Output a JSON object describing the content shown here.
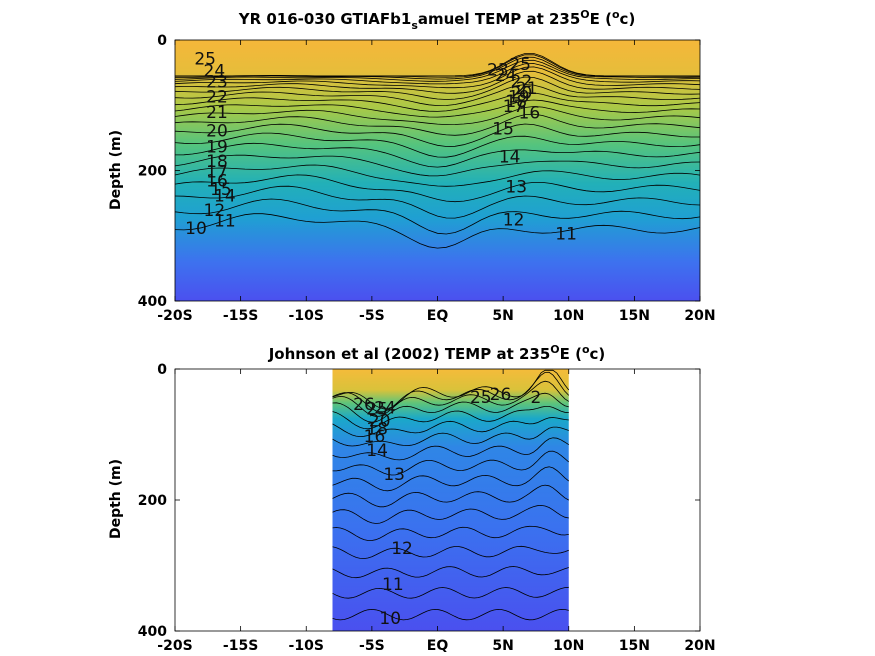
{
  "chart_data": [
    {
      "type": "heatmap",
      "title": "YR 016-030 GTIAFb1",
      "title_subscript": "s",
      "title_rest": "amuel TEMP at 235",
      "title_sup1": "O",
      "title_mid": "E (",
      "title_sup2": "o",
      "title_end": "c)",
      "xlabel": "",
      "ylabel": "Depth (m)",
      "x_tick_labels": [
        "-20S",
        "-15S",
        "-10S",
        "-5S",
        "EQ",
        "5N",
        "10N",
        "15N",
        "20N"
      ],
      "x_ticks": [
        -20,
        -15,
        -10,
        -5,
        0,
        5,
        10,
        15,
        20
      ],
      "y_tick_labels": [
        "0",
        "200",
        "400"
      ],
      "y_ticks": [
        0,
        200,
        400
      ],
      "xlim": [
        -20,
        20
      ],
      "ylim": [
        0,
        400
      ],
      "y_reversed": true,
      "data_xlim": [
        -20,
        20
      ],
      "colorscale": [
        "#4a50ef",
        "#2f88e8",
        "#1ab3c2",
        "#4fc78a",
        "#a9c947",
        "#f3b93a"
      ],
      "temp_range": [
        10,
        27
      ],
      "contour_labels": [
        {
          "text": "25",
          "x": -17.7,
          "y": 30
        },
        {
          "text": "24",
          "x": -17.0,
          "y": 48
        },
        {
          "text": "23",
          "x": -16.8,
          "y": 65
        },
        {
          "text": "22",
          "x": -16.8,
          "y": 88
        },
        {
          "text": "21",
          "x": -16.8,
          "y": 112
        },
        {
          "text": "20",
          "x": -16.8,
          "y": 140
        },
        {
          "text": "19",
          "x": -16.8,
          "y": 165
        },
        {
          "text": "18",
          "x": -16.8,
          "y": 187
        },
        {
          "text": "17",
          "x": -16.8,
          "y": 203
        },
        {
          "text": "16",
          "x": -16.8,
          "y": 217
        },
        {
          "text": "15",
          "x": -16.5,
          "y": 230
        },
        {
          "text": "14",
          "x": -16.2,
          "y": 240
        },
        {
          "text": "12",
          "x": -17.0,
          "y": 262
        },
        {
          "text": "11",
          "x": -16.2,
          "y": 278
        },
        {
          "text": "10",
          "x": -18.4,
          "y": 290
        },
        {
          "text": "25",
          "x": 6.3,
          "y": 38
        },
        {
          "text": "24",
          "x": 5.2,
          "y": 55
        },
        {
          "text": "23",
          "x": 4.6,
          "y": 47
        },
        {
          "text": "22",
          "x": 6.4,
          "y": 64
        },
        {
          "text": "21",
          "x": 6.8,
          "y": 75
        },
        {
          "text": "20",
          "x": 6.4,
          "y": 82
        },
        {
          "text": "19",
          "x": 6.2,
          "y": 88
        },
        {
          "text": "18",
          "x": 6.0,
          "y": 95
        },
        {
          "text": "17",
          "x": 5.8,
          "y": 103
        },
        {
          "text": "16",
          "x": 7.0,
          "y": 113
        },
        {
          "text": "15",
          "x": 5.0,
          "y": 137
        },
        {
          "text": "14",
          "x": 5.5,
          "y": 180
        },
        {
          "text": "13",
          "x": 6.0,
          "y": 226
        },
        {
          "text": "12",
          "x": 5.8,
          "y": 277
        },
        {
          "text": "11",
          "x": 9.8,
          "y": 298
        }
      ]
    },
    {
      "type": "heatmap",
      "title": "Johnson et al (2002) TEMP at 235",
      "title_sup1": "O",
      "title_mid": "E (",
      "title_sup2": "o",
      "title_end": "c)",
      "xlabel": "",
      "ylabel": "Depth (m)",
      "x_tick_labels": [
        "-20S",
        "-15S",
        "-10S",
        "-5S",
        "EQ",
        "5N",
        "10N",
        "15N",
        "20N"
      ],
      "x_ticks": [
        -20,
        -15,
        -10,
        -5,
        0,
        5,
        10,
        15,
        20
      ],
      "y_tick_labels": [
        "0",
        "200",
        "400"
      ],
      "y_ticks": [
        0,
        200,
        400
      ],
      "xlim": [
        -20,
        20
      ],
      "ylim": [
        0,
        400
      ],
      "y_reversed": true,
      "data_xlim": [
        -8,
        10
      ],
      "colorscale": [
        "#4a50ef",
        "#2f88e8",
        "#1ab3c2",
        "#4fc78a",
        "#a9c947",
        "#f3b93a"
      ],
      "temp_range": [
        10,
        27
      ],
      "contour_labels": [
        {
          "text": "26",
          "x": -5.6,
          "y": 55
        },
        {
          "text": "25",
          "x": -4.6,
          "y": 62
        },
        {
          "text": "24",
          "x": -4.0,
          "y": 60
        },
        {
          "text": "20",
          "x": -4.4,
          "y": 80
        },
        {
          "text": "18",
          "x": -4.6,
          "y": 92
        },
        {
          "text": "16",
          "x": -4.8,
          "y": 104
        },
        {
          "text": "14",
          "x": -4.6,
          "y": 125
        },
        {
          "text": "13",
          "x": -3.3,
          "y": 162
        },
        {
          "text": "25",
          "x": 3.3,
          "y": 44
        },
        {
          "text": "26",
          "x": 4.8,
          "y": 40
        },
        {
          "text": "2",
          "x": 7.5,
          "y": 44
        },
        {
          "text": "12",
          "x": -2.7,
          "y": 275
        },
        {
          "text": "11",
          "x": -3.4,
          "y": 330
        },
        {
          "text": "10",
          "x": -3.6,
          "y": 382
        }
      ]
    }
  ]
}
